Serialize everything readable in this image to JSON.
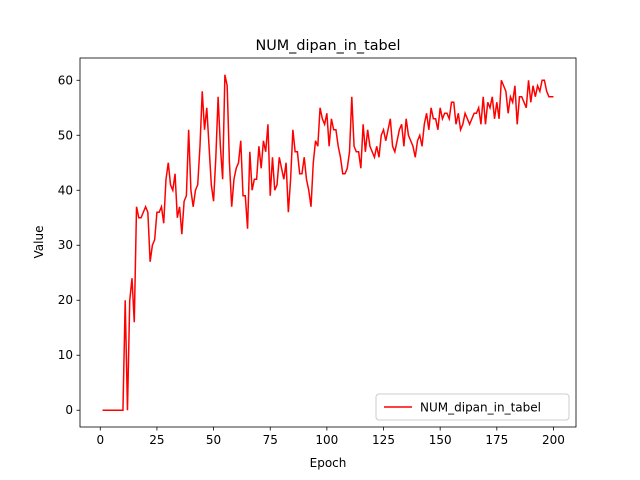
{
  "chart_data": {
    "type": "line",
    "title": "NUM_dipan_in_tabel",
    "xlabel": "Epoch",
    "ylabel": "Value",
    "x": [
      1,
      2,
      3,
      4,
      5,
      6,
      7,
      8,
      9,
      10,
      11,
      12,
      13,
      14,
      15,
      16,
      17,
      18,
      19,
      20,
      21,
      22,
      23,
      24,
      25,
      26,
      27,
      28,
      29,
      30,
      31,
      32,
      33,
      34,
      35,
      36,
      37,
      38,
      39,
      40,
      41,
      42,
      43,
      44,
      45,
      46,
      47,
      48,
      49,
      50,
      51,
      52,
      53,
      54,
      55,
      56,
      57,
      58,
      59,
      60,
      61,
      62,
      63,
      64,
      65,
      66,
      67,
      68,
      69,
      70,
      71,
      72,
      73,
      74,
      75,
      76,
      77,
      78,
      79,
      80,
      81,
      82,
      83,
      84,
      85,
      86,
      87,
      88,
      89,
      90,
      91,
      92,
      93,
      94,
      95,
      96,
      97,
      98,
      99,
      100,
      101,
      102,
      103,
      104,
      105,
      106,
      107,
      108,
      109,
      110,
      111,
      112,
      113,
      114,
      115,
      116,
      117,
      118,
      119,
      120,
      121,
      122,
      123,
      124,
      125,
      126,
      127,
      128,
      129,
      130,
      131,
      132,
      133,
      134,
      135,
      136,
      137,
      138,
      139,
      140,
      141,
      142,
      143,
      144,
      145,
      146,
      147,
      148,
      149,
      150,
      151,
      152,
      153,
      154,
      155,
      156,
      157,
      158,
      159,
      160,
      161,
      162,
      163,
      164,
      165,
      166,
      167,
      168,
      169,
      170,
      171,
      172,
      173,
      174,
      175,
      176,
      177,
      178,
      179,
      180,
      181,
      182,
      183,
      184,
      185,
      186,
      187,
      188,
      189,
      190,
      191,
      192,
      193,
      194,
      195,
      196,
      197,
      198,
      199,
      200
    ],
    "series": [
      {
        "name": "NUM_dipan_in_tabel",
        "color": "#ff0000",
        "values": [
          0,
          0,
          0,
          0,
          0,
          0,
          0,
          0,
          0,
          0,
          20,
          0,
          20,
          24,
          16,
          37,
          35,
          35,
          36,
          37,
          36,
          27,
          30,
          31,
          36,
          36,
          37,
          34,
          42,
          45,
          41,
          40,
          43,
          35,
          37,
          32,
          38,
          39,
          51,
          40,
          37,
          40,
          41,
          48,
          58,
          51,
          55,
          48,
          41,
          38,
          46,
          57,
          48,
          42,
          61,
          59,
          45,
          37,
          42,
          44,
          45,
          49,
          39,
          39,
          33,
          47,
          40,
          42,
          42,
          48,
          44,
          49,
          47,
          52,
          39,
          46,
          40,
          41,
          46,
          44,
          42,
          45,
          36,
          42,
          51,
          47,
          47,
          43,
          43,
          46,
          42,
          40,
          37,
          45,
          49,
          48,
          55,
          53,
          52,
          54,
          48,
          53,
          51,
          51,
          48,
          46,
          43,
          43,
          44,
          47,
          57,
          48,
          47,
          47,
          44,
          52,
          47,
          51,
          48,
          47,
          46,
          48,
          46,
          50,
          51,
          49,
          51,
          53,
          48,
          47,
          49,
          51,
          52,
          48,
          53,
          50,
          49,
          48,
          46,
          49,
          50,
          48,
          52,
          54,
          51,
          55,
          53,
          53,
          51,
          55,
          53,
          54,
          54,
          53,
          56,
          56,
          52,
          54,
          51,
          52,
          54,
          53,
          52,
          53,
          54,
          54,
          55,
          52,
          57,
          52,
          56,
          55,
          57,
          53,
          56,
          53,
          60,
          59,
          58,
          54,
          57,
          56,
          59,
          52,
          57,
          57,
          56,
          55,
          60,
          56,
          59,
          57,
          59,
          58,
          60,
          60,
          58,
          57,
          57,
          57
        ]
      }
    ],
    "xlim": [
      -8.95,
      209.95
    ],
    "xticks": [
      0,
      25,
      50,
      75,
      100,
      125,
      150,
      175,
      200
    ],
    "ylim": [
      -3.05,
      64.05
    ],
    "yticks": [
      0,
      10,
      20,
      30,
      40,
      50,
      60
    ],
    "legend": "lower right",
    "grid": false
  }
}
